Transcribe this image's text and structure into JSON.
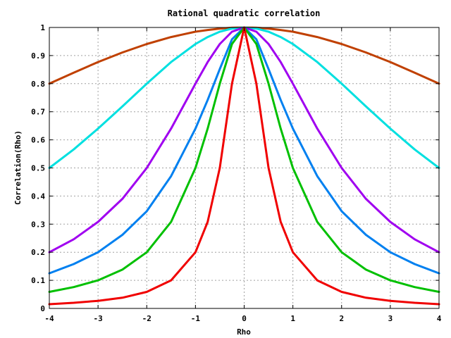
{
  "chart_data": {
    "type": "line",
    "title": "Rational quadratic correlation",
    "xlabel": "Rho",
    "ylabel": "Correlation(Rho)",
    "xlim": [
      -4,
      4
    ],
    "ylim": [
      0,
      1
    ],
    "grid": true,
    "legend": "none",
    "xticks": [
      "-4",
      "-3",
      "-2",
      "-1",
      "0",
      "1",
      "2",
      "3",
      "4"
    ],
    "yticks": [
      "0",
      "0.1",
      "0.2",
      "0.3",
      "0.4",
      "0.5",
      "0.6",
      "0.7",
      "0.8",
      "0.9",
      "1"
    ],
    "x": [
      -4,
      -3.5,
      -3,
      -2.5,
      -2,
      -1.5,
      -1,
      -0.75,
      -0.5,
      -0.25,
      0,
      0.25,
      0.5,
      0.75,
      1,
      1.5,
      2,
      2.5,
      3,
      3.5,
      4
    ],
    "series": [
      {
        "color": "#c04000",
        "values": [
          0.8,
          0.839,
          0.877,
          0.911,
          0.941,
          0.966,
          0.985,
          0.991,
          0.996,
          0.999,
          1.0,
          0.999,
          0.996,
          0.991,
          0.985,
          0.966,
          0.941,
          0.911,
          0.877,
          0.839,
          0.8
        ]
      },
      {
        "color": "#00e0e0",
        "values": [
          0.5,
          0.566,
          0.64,
          0.719,
          0.8,
          0.877,
          0.941,
          0.966,
          0.985,
          0.996,
          1.0,
          0.996,
          0.985,
          0.966,
          0.941,
          0.877,
          0.8,
          0.719,
          0.64,
          0.566,
          0.5
        ]
      },
      {
        "color": "#a000f0",
        "values": [
          0.2,
          0.246,
          0.308,
          0.39,
          0.5,
          0.64,
          0.8,
          0.877,
          0.941,
          0.985,
          1.0,
          0.985,
          0.941,
          0.877,
          0.8,
          0.64,
          0.5,
          0.39,
          0.308,
          0.246,
          0.2
        ]
      },
      {
        "color": "#0080f0",
        "values": [
          0.125,
          0.158,
          0.2,
          0.262,
          0.346,
          0.471,
          0.64,
          0.742,
          0.852,
          0.958,
          1.0,
          0.958,
          0.852,
          0.742,
          0.64,
          0.471,
          0.346,
          0.262,
          0.2,
          0.158,
          0.125
        ]
      },
      {
        "color": "#00c000",
        "values": [
          0.059,
          0.076,
          0.1,
          0.138,
          0.2,
          0.308,
          0.5,
          0.64,
          0.8,
          0.941,
          1.0,
          0.941,
          0.8,
          0.64,
          0.5,
          0.308,
          0.2,
          0.138,
          0.1,
          0.076,
          0.059
        ]
      },
      {
        "color": "#f00000",
        "values": [
          0.015,
          0.02,
          0.027,
          0.038,
          0.059,
          0.1,
          0.2,
          0.308,
          0.5,
          0.8,
          1.0,
          0.8,
          0.5,
          0.308,
          0.2,
          0.1,
          0.059,
          0.038,
          0.027,
          0.02,
          0.015
        ]
      }
    ]
  }
}
